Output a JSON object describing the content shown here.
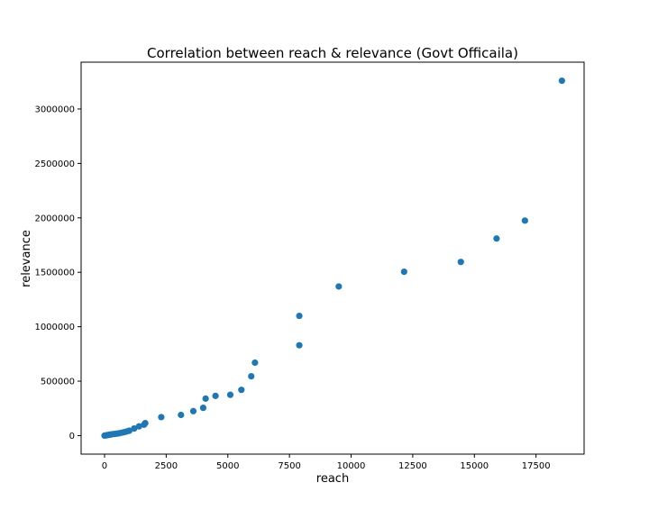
{
  "chart_data": {
    "type": "scatter",
    "title": "Correlation between reach & relevance (Govt Officaila)",
    "xlabel": "reach",
    "ylabel": "relevance",
    "xlim": [
      -950,
      19450
    ],
    "ylim": [
      -170000,
      3430000
    ],
    "xticks": [
      0,
      2500,
      5000,
      7500,
      10000,
      12500,
      15000,
      17500
    ],
    "yticks": [
      0,
      500000,
      1000000,
      1500000,
      2000000,
      2500000,
      3000000
    ],
    "grid": false,
    "color": "#1f77b4",
    "series": [
      {
        "points": [
          [
            0,
            0
          ],
          [
            50,
            2000
          ],
          [
            100,
            4000
          ],
          [
            150,
            6000
          ],
          [
            200,
            8000
          ],
          [
            250,
            10000
          ],
          [
            300,
            12000
          ],
          [
            400,
            15000
          ],
          [
            500,
            18000
          ],
          [
            600,
            22000
          ],
          [
            700,
            27000
          ],
          [
            800,
            32000
          ],
          [
            900,
            38000
          ],
          [
            1000,
            45000
          ],
          [
            1200,
            65000
          ],
          [
            1400,
            85000
          ],
          [
            1600,
            100000
          ],
          [
            1650,
            115000
          ],
          [
            2300,
            170000
          ],
          [
            3100,
            190000
          ],
          [
            3600,
            225000
          ],
          [
            4000,
            255000
          ],
          [
            4100,
            340000
          ],
          [
            4500,
            365000
          ],
          [
            5100,
            375000
          ],
          [
            5550,
            420000
          ],
          [
            5950,
            545000
          ],
          [
            6100,
            670000
          ],
          [
            7900,
            830000
          ],
          [
            7900,
            1100000
          ],
          [
            9500,
            1370000
          ],
          [
            12150,
            1505000
          ],
          [
            14450,
            1595000
          ],
          [
            15900,
            1810000
          ],
          [
            17050,
            1975000
          ],
          [
            18550,
            3260000
          ]
        ]
      }
    ]
  }
}
